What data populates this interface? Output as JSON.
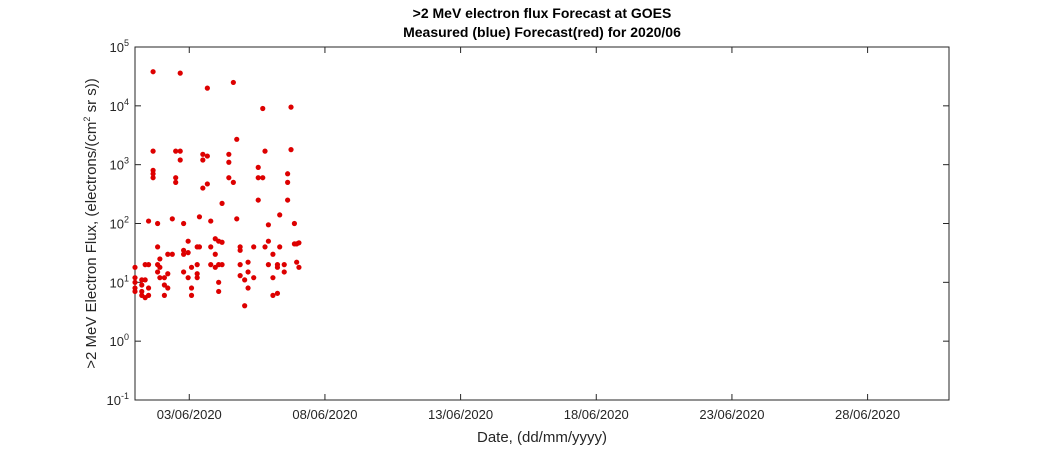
{
  "chart_data": {
    "type": "scatter",
    "title": ">2 MeV electron flux Forecast at GOES",
    "subtitle": "Measured (blue) Forecast(red) for 2020/06",
    "x_label": "Date, (dd/mm/yyyy)",
    "y_label": ">2 MeV Electron Flux, (electrons/(cm^2 sr s))",
    "log_y": true,
    "color": "#dd0000",
    "xlim": [
      "2020-06-01T00:00",
      "2020-07-01T00:00"
    ],
    "xticks": [
      {
        "value": "2020-06-03T00:00",
        "label": "03/06/2020"
      },
      {
        "value": "2020-06-08T00:00",
        "label": "08/06/2020"
      },
      {
        "value": "2020-06-13T00:00",
        "label": "13/06/2020"
      },
      {
        "value": "2020-06-18T00:00",
        "label": "18/06/2020"
      },
      {
        "value": "2020-06-23T00:00",
        "label": "23/06/2020"
      },
      {
        "value": "2020-06-28T00:00",
        "label": "28/06/2020"
      }
    ],
    "ylim": [
      0.1,
      100000
    ],
    "yticks": [
      {
        "value": 0.1,
        "label": "10^-1"
      },
      {
        "value": 1,
        "label": "10^0"
      },
      {
        "value": 10,
        "label": "10^1"
      },
      {
        "value": 100,
        "label": "10^2"
      },
      {
        "value": 1000,
        "label": "10^3"
      },
      {
        "value": 10000,
        "label": "10^4"
      },
      {
        "value": 100000,
        "label": "10^5"
      }
    ],
    "x": [
      "2020-06-01T00:00",
      "2020-06-01T00:00",
      "2020-06-01T00:00",
      "2020-06-01T00:00",
      "2020-06-01T00:00",
      "2020-06-01T06:00",
      "2020-06-01T06:00",
      "2020-06-01T06:00",
      "2020-06-01T06:00",
      "2020-06-01T09:00",
      "2020-06-01T09:00",
      "2020-06-01T09:00",
      "2020-06-01T12:00",
      "2020-06-01T12:00",
      "2020-06-01T12:00",
      "2020-06-01T12:00",
      "2020-06-01T16:00",
      "2020-06-01T16:00",
      "2020-06-01T16:00",
      "2020-06-01T16:00",
      "2020-06-01T16:00",
      "2020-06-01T20:00",
      "2020-06-01T20:00",
      "2020-06-01T20:00",
      "2020-06-01T20:00",
      "2020-06-01T22:00",
      "2020-06-01T22:00",
      "2020-06-01T22:00",
      "2020-06-02T02:00",
      "2020-06-02T02:00",
      "2020-06-02T02:00",
      "2020-06-02T05:00",
      "2020-06-02T05:00",
      "2020-06-02T05:00",
      "2020-06-02T09:00",
      "2020-06-02T09:00",
      "2020-06-02T12:00",
      "2020-06-02T12:00",
      "2020-06-02T12:00",
      "2020-06-02T16:00",
      "2020-06-02T16:00",
      "2020-06-02T16:00",
      "2020-06-02T19:00",
      "2020-06-02T19:00",
      "2020-06-02T19:00",
      "2020-06-02T19:00",
      "2020-06-02T23:00",
      "2020-06-02T23:00",
      "2020-06-02T23:00",
      "2020-06-03T02:00",
      "2020-06-03T02:00",
      "2020-06-03T02:00",
      "2020-06-03T07:00",
      "2020-06-03T07:00",
      "2020-06-03T07:00",
      "2020-06-03T07:00",
      "2020-06-03T09:00",
      "2020-06-03T09:00",
      "2020-06-03T12:00",
      "2020-06-03T12:00",
      "2020-06-03T12:00",
      "2020-06-03T16:00",
      "2020-06-03T16:00",
      "2020-06-03T16:00",
      "2020-06-03T19:00",
      "2020-06-03T19:00",
      "2020-06-03T19:00",
      "2020-06-03T23:00",
      "2020-06-03T23:00",
      "2020-06-03T23:00",
      "2020-06-04T02:00",
      "2020-06-04T02:00",
      "2020-06-04T02:00",
      "2020-06-04T02:00",
      "2020-06-04T05:00",
      "2020-06-04T05:00",
      "2020-06-04T05:00",
      "2020-06-04T11:00",
      "2020-06-04T11:00",
      "2020-06-04T11:00",
      "2020-06-04T15:00",
      "2020-06-04T15:00",
      "2020-06-04T18:00",
      "2020-06-04T18:00",
      "2020-06-04T21:00",
      "2020-06-04T21:00",
      "2020-06-04T21:00",
      "2020-06-04T21:00",
      "2020-06-05T01:00",
      "2020-06-05T01:00",
      "2020-06-05T04:00",
      "2020-06-05T04:00",
      "2020-06-05T04:00",
      "2020-06-05T09:00",
      "2020-06-05T09:00",
      "2020-06-05T13:00",
      "2020-06-05T13:00",
      "2020-06-05T13:00",
      "2020-06-05T17:00",
      "2020-06-05T17:00",
      "2020-06-05T19:00",
      "2020-06-05T19:00",
      "2020-06-05T22:00",
      "2020-06-05T22:00",
      "2020-06-05T22:00",
      "2020-06-06T02:00",
      "2020-06-06T02:00",
      "2020-06-06T02:00",
      "2020-06-06T06:00",
      "2020-06-06T06:00",
      "2020-06-06T06:00",
      "2020-06-06T08:00",
      "2020-06-06T08:00",
      "2020-06-06T12:00",
      "2020-06-06T12:00",
      "2020-06-06T15:00",
      "2020-06-06T15:00",
      "2020-06-06T15:00",
      "2020-06-06T18:00",
      "2020-06-06T18:00",
      "2020-06-06T21:00",
      "2020-06-06T21:00",
      "2020-06-06T23:00",
      "2020-06-06T23:00",
      "2020-06-07T01:00",
      "2020-06-07T01:00"
    ],
    "values": [
      10,
      7,
      18,
      12,
      8,
      9,
      11,
      7,
      6,
      20,
      5.5,
      11,
      20,
      6,
      8,
      110,
      38000,
      800,
      600,
      700,
      1700,
      100,
      40,
      20,
      15,
      12,
      25,
      18,
      12,
      9,
      6,
      30,
      8,
      14,
      120,
      30,
      600,
      500,
      1700,
      36000,
      1700,
      1200,
      35,
      100,
      30,
      15,
      12,
      50,
      32,
      18,
      8,
      6,
      40,
      14,
      12,
      20,
      130,
      40,
      1500,
      400,
      1200,
      20000,
      1400,
      470,
      110,
      40,
      20,
      55,
      18,
      30,
      50,
      20,
      10,
      7,
      20,
      48,
      220,
      600,
      1500,
      1100,
      25000,
      500,
      2700,
      120,
      40,
      35,
      20,
      13,
      11,
      4,
      8,
      15,
      22,
      40,
      12,
      250,
      900,
      600,
      9000,
      600,
      1700,
      40,
      50,
      20,
      95,
      6,
      30,
      12,
      6.5,
      18,
      20,
      40,
      140,
      15,
      20,
      500,
      700,
      250,
      9500,
      1800,
      100,
      45,
      45,
      22,
      18,
      47
    ]
  }
}
